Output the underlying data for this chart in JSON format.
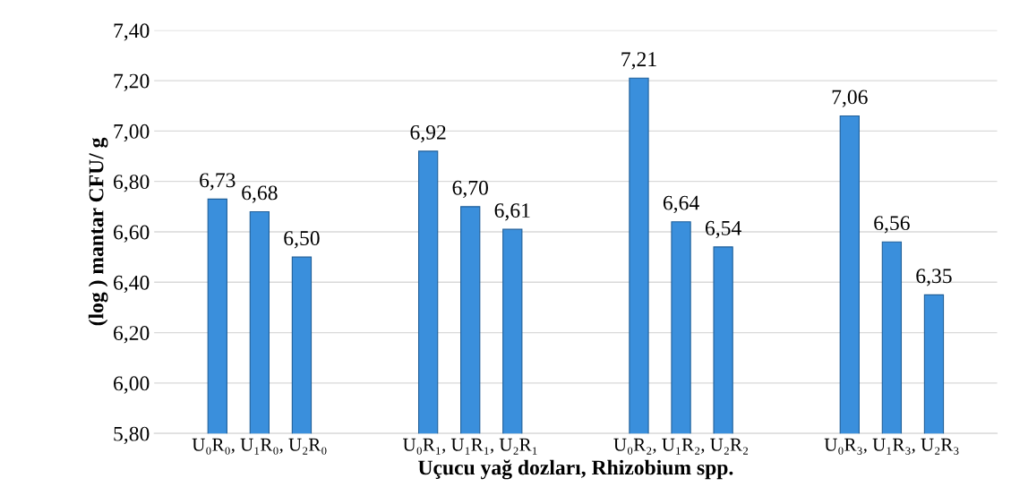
{
  "chart_data": {
    "type": "bar",
    "xlabel": "Uçucu yağ dozları, Rhizobium spp.",
    "ylabel": "(log ) mantar CFU/ g",
    "categories": [
      "U₀R₀, U₁R₀, U₂R₀",
      "U₀R₁, U₁R₁, U₂R₁",
      "U₀R₂, U₁R₂, U₂R₂",
      "U₀R₃, U₁R₃, U₂R₃"
    ],
    "series": [
      {
        "color": "#3a8fdc",
        "values": [
          6.73,
          6.92,
          7.21,
          7.06
        ],
        "value_labels": [
          "6,73",
          "6,92",
          "7,21",
          "7,06"
        ]
      },
      {
        "color": "#3a8fdc",
        "values": [
          6.68,
          6.7,
          6.64,
          6.56
        ],
        "value_labels": [
          "6,68",
          "6,70",
          "6,64",
          "6,56"
        ]
      },
      {
        "color": "#3a8fdc",
        "values": [
          6.5,
          6.61,
          6.54,
          6.35
        ],
        "value_labels": [
          "6,50",
          "6,61",
          "6,54",
          "6,35"
        ]
      }
    ],
    "ylim": [
      5.8,
      7.4
    ],
    "yticks": [
      {
        "value": 5.8,
        "label": "5,80"
      },
      {
        "value": 6.0,
        "label": "6,00"
      },
      {
        "value": 6.2,
        "label": "6,20"
      },
      {
        "value": 6.4,
        "label": "6,40"
      },
      {
        "value": 6.6,
        "label": "6,60"
      },
      {
        "value": 6.8,
        "label": "6,80"
      },
      {
        "value": 7.0,
        "label": "7,00"
      },
      {
        "value": 7.2,
        "label": "7,20"
      },
      {
        "value": 7.4,
        "label": "7,40"
      }
    ],
    "grid": "y"
  }
}
